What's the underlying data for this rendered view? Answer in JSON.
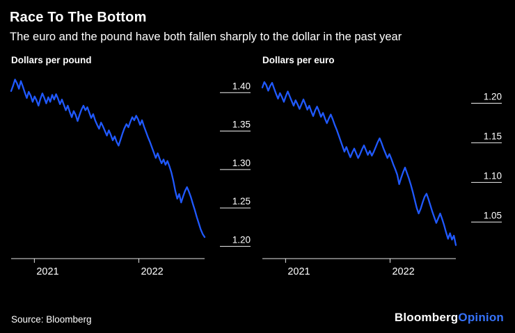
{
  "header": {
    "title": "Race To The Bottom",
    "subtitle": "The euro and the pound have both fallen sharply to the dollar in the past year"
  },
  "footer": {
    "source": "Source: Bloomberg",
    "logo_bloomberg": "Bloomberg",
    "logo_opinion": "Opinion"
  },
  "colors": {
    "background": "#000000",
    "text": "#ffffff",
    "line": "#2059ff",
    "axis": "#ffffff",
    "logo_opinion": "#3672f8"
  },
  "chart_data": [
    {
      "type": "line",
      "title": "Dollars per pound",
      "ylim": [
        1.175,
        1.412
      ],
      "y_ticks": [
        {
          "label": "1.40",
          "value": 1.4
        },
        {
          "label": "1.35",
          "value": 1.35
        },
        {
          "label": "1.30",
          "value": 1.3
        },
        {
          "label": "1.25",
          "value": 1.25
        },
        {
          "label": "1.20",
          "value": 1.2
        }
      ],
      "x_ticks": [
        {
          "label": "2021",
          "f": 0.12
        },
        {
          "label": "2022",
          "f": 0.66
        }
      ],
      "values": [
        1.393,
        1.4,
        1.408,
        1.403,
        1.396,
        1.406,
        1.399,
        1.391,
        1.384,
        1.392,
        1.387,
        1.379,
        1.386,
        1.381,
        1.374,
        1.383,
        1.39,
        1.384,
        1.377,
        1.385,
        1.379,
        1.388,
        1.382,
        1.389,
        1.383,
        1.376,
        1.382,
        1.375,
        1.368,
        1.374,
        1.366,
        1.359,
        1.367,
        1.362,
        1.354,
        1.362,
        1.369,
        1.374,
        1.368,
        1.372,
        1.365,
        1.358,
        1.363,
        1.355,
        1.349,
        1.344,
        1.352,
        1.347,
        1.341,
        1.335,
        1.342,
        1.336,
        1.329,
        1.334,
        1.327,
        1.322,
        1.33,
        1.338,
        1.345,
        1.35,
        1.346,
        1.353,
        1.359,
        1.355,
        1.361,
        1.356,
        1.349,
        1.355,
        1.347,
        1.34,
        1.333,
        1.327,
        1.32,
        1.313,
        1.306,
        1.312,
        1.305,
        1.299,
        1.304,
        1.297,
        1.302,
        1.295,
        1.287,
        1.276,
        1.263,
        1.253,
        1.259,
        1.248,
        1.256,
        1.263,
        1.268,
        1.262,
        1.255,
        1.246,
        1.238,
        1.229,
        1.221,
        1.213,
        1.207,
        1.203
      ]
    },
    {
      "type": "line",
      "title": "Dollars per euro",
      "ylim": [
        0.995,
        1.225
      ],
      "y_ticks": [
        {
          "label": "1.20",
          "value": 1.2
        },
        {
          "label": "1.15",
          "value": 1.15
        },
        {
          "label": "1.10",
          "value": 1.1
        },
        {
          "label": "1.05",
          "value": 1.05
        }
      ],
      "x_ticks": [
        {
          "label": "2021",
          "f": 0.12
        },
        {
          "label": "2022",
          "f": 0.66
        }
      ],
      "values": [
        1.211,
        1.218,
        1.214,
        1.207,
        1.213,
        1.217,
        1.21,
        1.203,
        1.197,
        1.204,
        1.199,
        1.193,
        1.2,
        1.206,
        1.2,
        1.194,
        1.188,
        1.195,
        1.19,
        1.184,
        1.19,
        1.196,
        1.19,
        1.183,
        1.188,
        1.181,
        1.175,
        1.182,
        1.187,
        1.181,
        1.174,
        1.179,
        1.172,
        1.166,
        1.172,
        1.177,
        1.171,
        1.164,
        1.158,
        1.151,
        1.144,
        1.137,
        1.13,
        1.136,
        1.129,
        1.123,
        1.129,
        1.134,
        1.128,
        1.122,
        1.127,
        1.133,
        1.138,
        1.132,
        1.126,
        1.131,
        1.125,
        1.13,
        1.136,
        1.142,
        1.147,
        1.141,
        1.134,
        1.128,
        1.122,
        1.127,
        1.121,
        1.114,
        1.108,
        1.101,
        1.089,
        1.097,
        1.104,
        1.11,
        1.103,
        1.096,
        1.088,
        1.079,
        1.069,
        1.059,
        1.052,
        1.058,
        1.066,
        1.073,
        1.077,
        1.07,
        1.062,
        1.054,
        1.047,
        1.04,
        1.046,
        1.052,
        1.045,
        1.037,
        1.028,
        1.02,
        1.027,
        1.019,
        1.024,
        1.012
      ]
    }
  ]
}
